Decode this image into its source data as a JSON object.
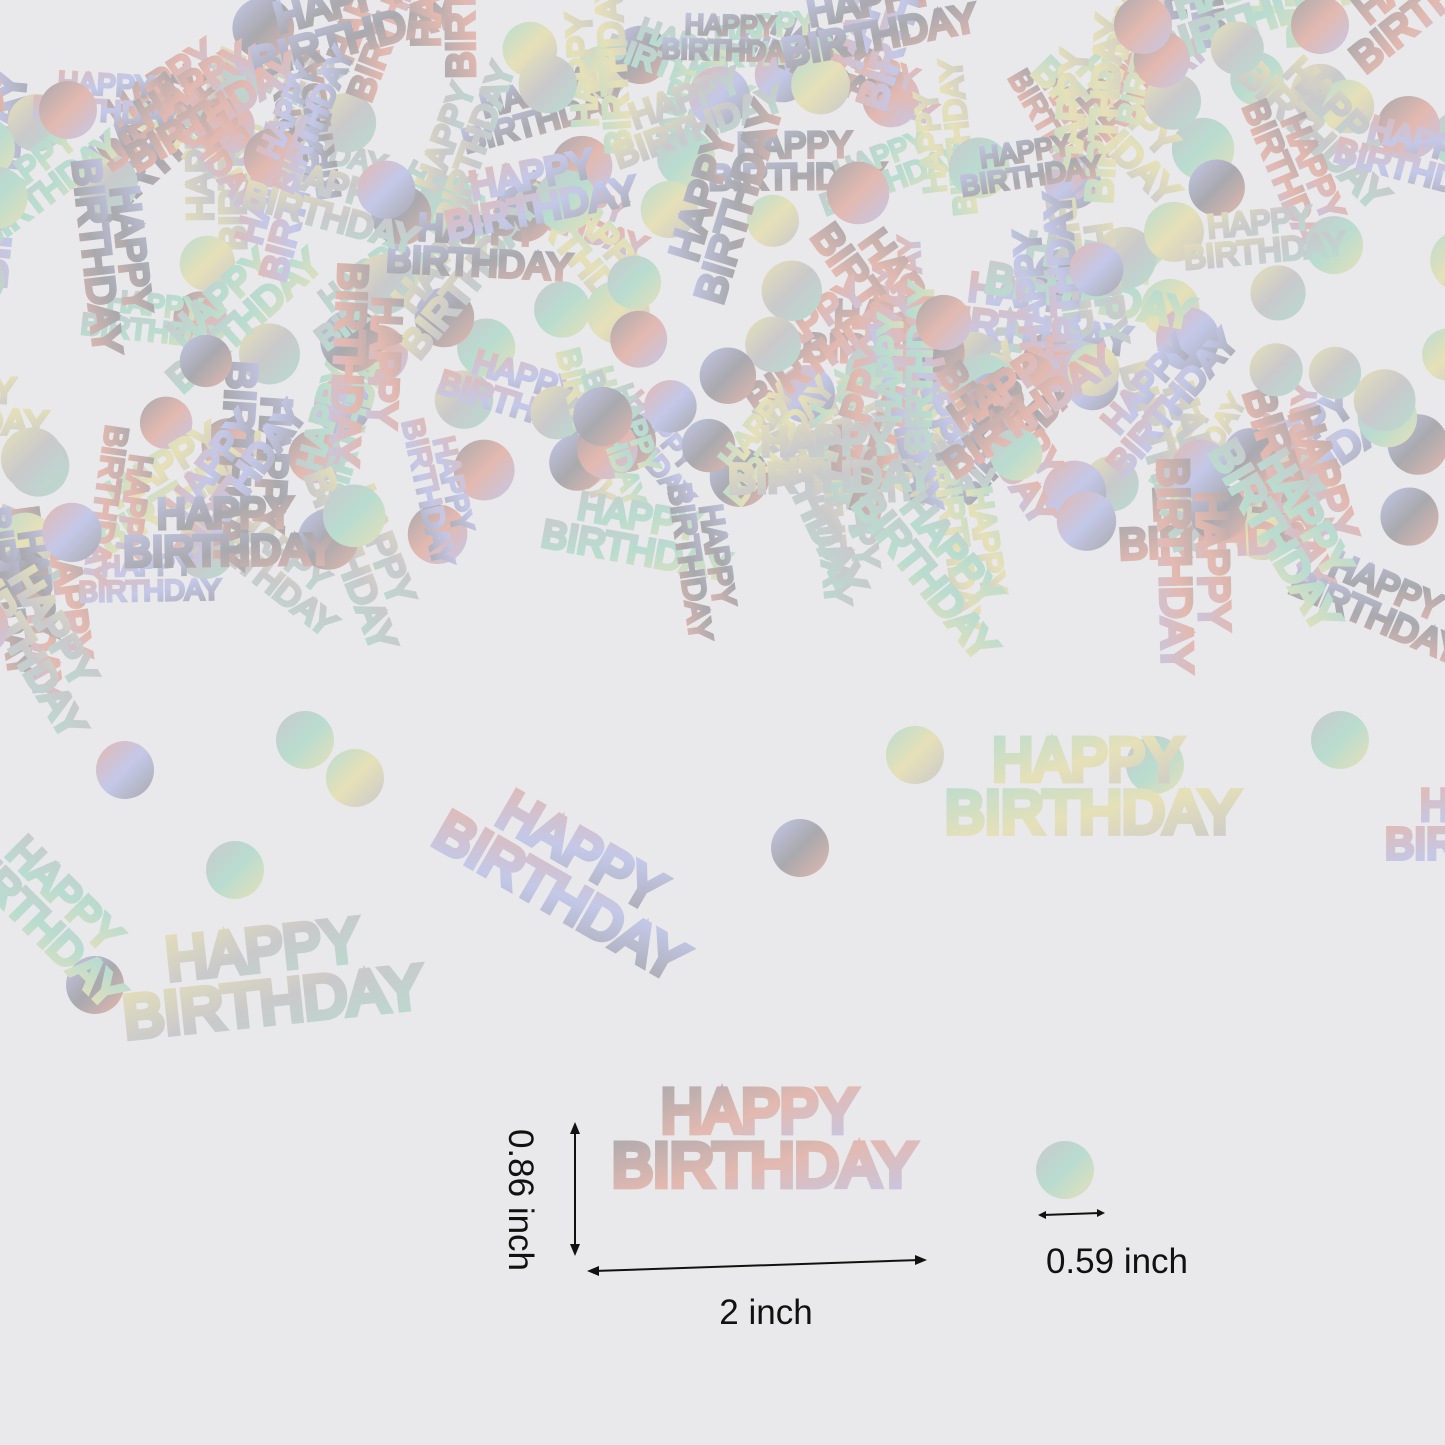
{
  "photo": {
    "subject": "holographic silver birthday confetti",
    "confetti_text": [
      "HAPPY",
      "BIRTHDAY"
    ],
    "background_color": "#e9e9eb",
    "iridescent_colors": [
      "#c9c9cc",
      "#e3b9b0",
      "#b9dcd0",
      "#c4c8e8",
      "#e6e0b8",
      "#a9a9ae"
    ]
  },
  "dimensions": {
    "word_height": "0.86 inch",
    "word_width": "2 inch",
    "dot_diameter": "0.59 inch"
  }
}
